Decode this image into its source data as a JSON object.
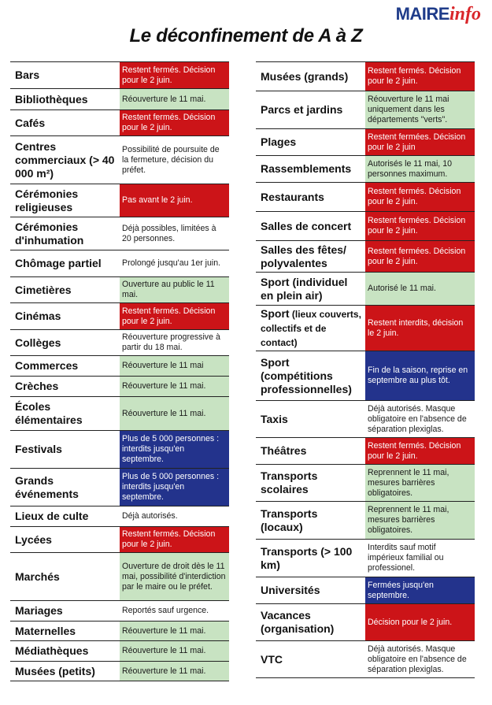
{
  "logo": {
    "maire": "MAIRE",
    "info": "info"
  },
  "title": "Le déconfinement de A à Z",
  "colors": {
    "red": "#cc1418",
    "green": "#c8e3c2",
    "blue": "#23338c",
    "white": "#ffffff"
  },
  "left": [
    {
      "label": "Bars",
      "status": "Restent fermés. Décision pour le 2 juin.",
      "color": "red",
      "h": 34
    },
    {
      "label": "Bibliothèques",
      "status": "Réouverture le 11 mai.",
      "color": "green",
      "h": 27
    },
    {
      "label": "Cafés",
      "status": "Restent fermés. Décision pour le 2 juin.",
      "color": "red",
      "h": 33
    },
    {
      "label": "Centres commerciaux (> 40 000 m²)",
      "status": "Possibilité de poursuite de la fermeture, décision du préfet.",
      "color": "white",
      "h": 61
    },
    {
      "label": "Cérémonies religieuses",
      "status": "Pas avant le 2 juin.",
      "color": "red",
      "h": 42
    },
    {
      "label": "Cérémonies d'inhumation",
      "status": "Déjà possibles, limitées à 20 personnes.",
      "color": "white",
      "h": 42
    },
    {
      "label": "Chômage partiel",
      "status": "Prolongé jusqu'au 1er juin.",
      "color": "white",
      "h": 34
    },
    {
      "label": "Cimetières",
      "status": "Ouverture au public le 11 mai.",
      "color": "green",
      "h": 33
    },
    {
      "label": "Cinémas",
      "status": "Restent fermés. Décision pour le 2 juin.",
      "color": "red",
      "h": 34
    },
    {
      "label": "Collèges",
      "status": "Réouverture progressive à partir du 18 mai.",
      "color": "white",
      "h": 33
    },
    {
      "label": "Commerces",
      "status": "Réouverture le 11 mai",
      "color": "green",
      "h": 26
    },
    {
      "label": "Crèches",
      "status": "Réouverture le 11 mai.",
      "color": "green",
      "h": 26
    },
    {
      "label": "Écoles élémentaires",
      "status": "Réouverture le 11 mai.",
      "color": "green",
      "h": 43
    },
    {
      "label": "Festivals",
      "status": "Plus de 5 000 personnes : interdits jusqu'en septembre.",
      "color": "blue",
      "h": 48
    },
    {
      "label": "Grands événements",
      "status": "Plus de 5 000 personnes : interdits jusqu'en septembre.",
      "color": "blue",
      "h": 48
    },
    {
      "label": "Lieux de culte",
      "status": "Déjà autorisés.",
      "color": "white",
      "h": 26
    },
    {
      "label": "Lycées",
      "status": "Restent fermés. Décision pour le 2 juin.",
      "color": "red",
      "h": 33
    },
    {
      "label": "Marchés",
      "status": "Ouverture de droit dès le 11 mai, possibilité d'interdiction par le maire ou le préfet.",
      "color": "green",
      "h": 61
    },
    {
      "label": "Mariages",
      "status": "Reportés sauf urgence.",
      "color": "white",
      "h": 26
    },
    {
      "label": "Maternelles",
      "status": "Réouverture le 11 mai.",
      "color": "green",
      "h": 25
    },
    {
      "label": "Médiathèques",
      "status": "Réouverture le 11 mai.",
      "color": "green",
      "h": 26
    },
    {
      "label": "Musées (petits)",
      "status": "Réouverture le 11 mai.",
      "color": "green",
      "h": 26
    }
  ],
  "right": [
    {
      "label": "Musées (grands)",
      "status": "Restent fermés. Décision pour le 2 juin.",
      "color": "red",
      "h": 37
    },
    {
      "label": "Parcs et jardins",
      "status": "Réouverture le 11 mai uniquement dans les départements \"verts\".",
      "color": "green",
      "h": 48
    },
    {
      "label": "Plages",
      "status": "Restent fermées. Décision pour le 2 juin",
      "color": "red",
      "h": 34
    },
    {
      "label": "Rassemblements",
      "status": "Autorisés le 11 mai, 10 personnes maximum.",
      "color": "green",
      "h": 34
    },
    {
      "label": "Restaurants",
      "status": "Restent fermés. Décision pour le 2 juin.",
      "color": "red",
      "h": 37
    },
    {
      "label": "Salles de concert",
      "status": "Restent fermées. Décision pour le 2 juin.",
      "color": "red",
      "h": 37
    },
    {
      "label": "Salles des fêtes/ polyvalentes",
      "status": "Restent fermées. Décision pour le 2 juin.",
      "color": "red",
      "h": 40
    },
    {
      "label": "Sport (individuel en plein air)",
      "status": "Autorisé le 11 mai.",
      "color": "green",
      "h": 42
    },
    {
      "label": "Sport",
      "label_small": " (lieux couverts, collectifs et de contact)",
      "status": "Restent interdits, décision le 2 juin.",
      "color": "red",
      "h": 58
    },
    {
      "label": "Sport (compétitions professionnelles)",
      "status": "Fin de la saison, reprise en septembre au plus tôt.",
      "color": "blue",
      "h": 63
    },
    {
      "label": "Taxis",
      "status": "Déjà autorisés. Masque obligatoire en l'absence de séparation plexiglas.",
      "color": "white",
      "h": 47
    },
    {
      "label": "Théâtres",
      "status": "Restent fermés. Décision pour le 2 juin.",
      "color": "red",
      "h": 34
    },
    {
      "label": "Transports scolaires",
      "status": "Reprennent le 11 mai, mesures barrières obligatoires.",
      "color": "green",
      "h": 47
    },
    {
      "label": "Transports (locaux)",
      "status": "Reprennent le 11 mai, mesures barrières obligatoires.",
      "color": "green",
      "h": 48
    },
    {
      "label": "Transports (> 100 km)",
      "status": "Interdits sauf motif impérieux familial ou professionel.",
      "color": "white",
      "h": 48
    },
    {
      "label": "Universités",
      "status": "Fermées jusqu'en septembre.",
      "color": "blue",
      "h": 34
    },
    {
      "label": "Vacances (organisation)",
      "status": "Décision pour le 2 juin.",
      "color": "red",
      "h": 47
    },
    {
      "label": "VTC",
      "status": "Déjà autorisés. Masque obligatoire en l'absence de séparation plexiglas.",
      "color": "white",
      "h": 48
    }
  ]
}
